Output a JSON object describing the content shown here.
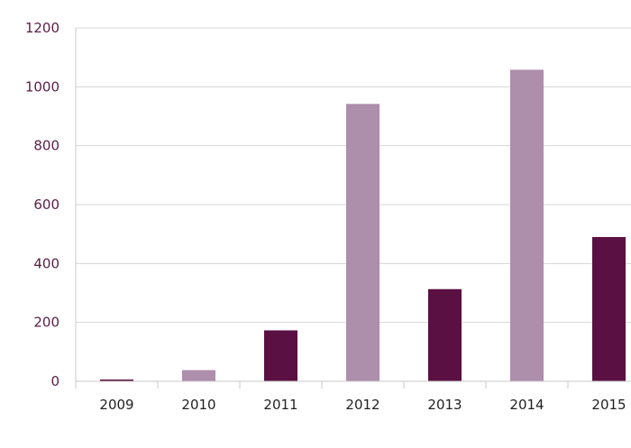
{
  "chart_data": {
    "type": "bar",
    "categories": [
      "2009",
      "2010",
      "2011",
      "2012",
      "2013",
      "2014",
      "2015"
    ],
    "values": [
      6,
      38,
      173,
      942,
      313,
      1058,
      490
    ],
    "bar_colors": [
      "#5a1042",
      "#ad8eab",
      "#5a1042",
      "#ad8eab",
      "#5a1042",
      "#ad8eab",
      "#5a1042"
    ],
    "ylim": [
      0,
      1200
    ],
    "yticks": [
      "0",
      "200",
      "400",
      "600",
      "800",
      "1000",
      "1200"
    ],
    "grid": true,
    "title": "",
    "xlabel": "",
    "ylabel": ""
  }
}
